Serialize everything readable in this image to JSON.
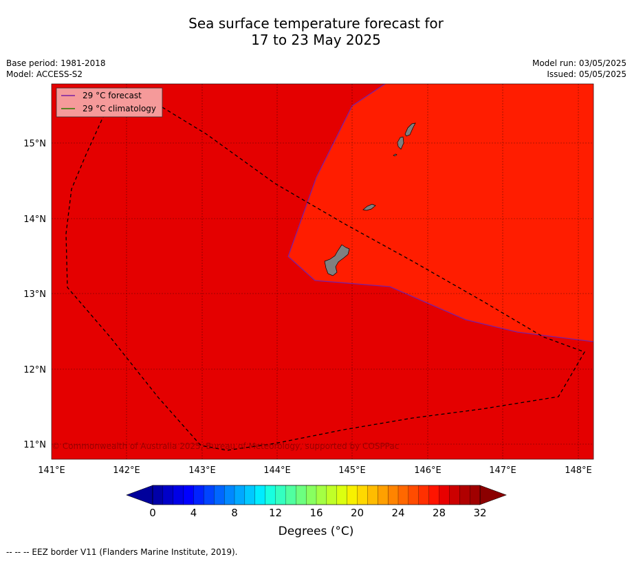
{
  "title_line1": "Sea surface temperature forecast for",
  "title_line2": "17 to 23 May 2025",
  "meta": {
    "base_period": "Base period: 1981-2018",
    "model": "Model: ACCESS-S2",
    "model_run": "Model run: 03/05/2025",
    "issued": "Issued: 05/05/2025"
  },
  "legend": {
    "forecast": "29 °C  forecast",
    "climatology": "29 °C  climatology"
  },
  "copyright": "© Commonwealth of Australia 2025, Bureau of Meteorology, supported by COSPPac",
  "lat_labels": [
    "15°N",
    "14°N",
    "13°N",
    "12°N",
    "11°N"
  ],
  "lon_labels": [
    "141°E",
    "142°E",
    "143°E",
    "144°E",
    "145°E",
    "146°E",
    "147°E",
    "148°E"
  ],
  "colorbar": {
    "ticks": [
      "0",
      "4",
      "8",
      "12",
      "16",
      "20",
      "24",
      "28",
      "32"
    ],
    "label": "Degrees (°C)"
  },
  "footnote": "--  --  -- EEZ border V11 (Flanders Marine Institute, 2019).",
  "colors": {
    "warm_fill": "#e40000",
    "hot_fill": "#ff1d00",
    "forecast_line": "#7a1fa2",
    "climatology_line": "#2a7a00",
    "land": "#808080"
  }
}
